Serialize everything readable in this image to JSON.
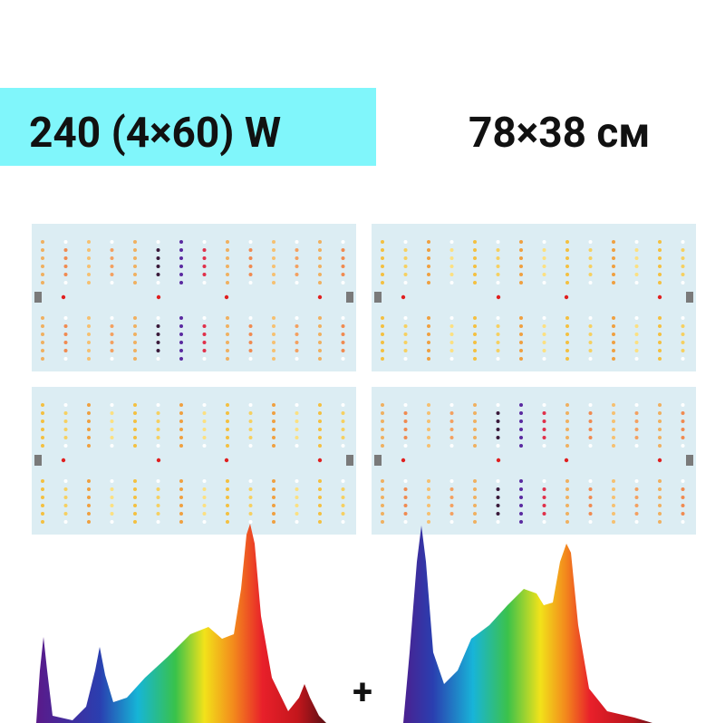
{
  "header": {
    "power": "240 (4×60) W",
    "size": "78×38 см"
  },
  "spectrum": {
    "plus": "+"
  }
}
